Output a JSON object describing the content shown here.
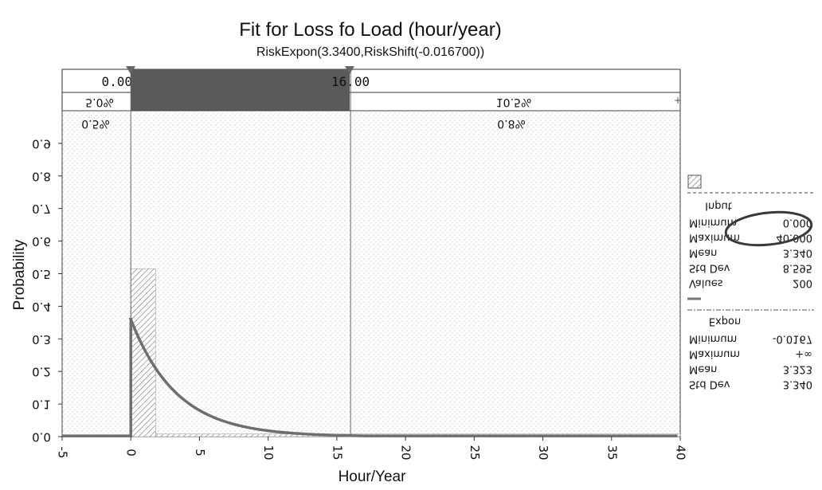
{
  "chart_data": {
    "type": "bar",
    "title": "Fit for Loss fo Load (hour/year)",
    "subtitle": "RiskExpon(3.3400,RiskShift(-0.016700))",
    "xlabel": "Hour/Year",
    "ylabel": "Probability",
    "xlim": [
      -5,
      40
    ],
    "ylim": [
      0.0,
      1.0
    ],
    "x_ticks": [
      "-5",
      "0",
      "5",
      "10",
      "15",
      "20",
      "25",
      "30",
      "35",
      "40"
    ],
    "y_ticks": [
      "0.0",
      "0.1",
      "0.2",
      "0.3",
      "0.4",
      "0.5",
      "0.6",
      "0.7",
      "0.8",
      "0.9"
    ],
    "delimiters": {
      "left_value": "0.00",
      "right_value": "16.00",
      "left_pct_top": "5.0%",
      "right_pct_top": "10.5%",
      "left_pct_bottom": "0.5%",
      "right_pct_bottom": "0.8%"
    },
    "histogram": {
      "name": "Input",
      "bins": [
        {
          "x0": 0.0,
          "x1": 1.8,
          "value": 0.515
        },
        {
          "x0": 1.8,
          "x1": 40.0,
          "value": 0.008
        }
      ]
    },
    "fit_curve": {
      "name": "Expon",
      "shift": -0.0167,
      "beta": 3.34,
      "peak": 0.36,
      "x_end": 40
    },
    "legend": {
      "input_title": "Input",
      "input_rows": [
        {
          "label": "Minimum",
          "value": "0.000"
        },
        {
          "label": "Maximum",
          "value": "40.000"
        },
        {
          "label": "Mean",
          "value": "3.340"
        },
        {
          "label": "Std Dev",
          "value": "8.595"
        },
        {
          "label": "Values",
          "value": "200"
        }
      ],
      "fit_title": "Expon",
      "fit_rows": [
        {
          "label": "Minimum",
          "value": "-0.0167"
        },
        {
          "label": "Maximum",
          "value": "+∞"
        },
        {
          "label": "Mean",
          "value": "3.323"
        },
        {
          "label": "Std Dev",
          "value": "3.340"
        }
      ]
    },
    "grid": false,
    "legend_placement": "right"
  },
  "colors": {
    "delimiter_band": "#5a5a5a",
    "fit_curve": "#6e6e6e",
    "histogram": "#8a8a8a",
    "annotation_circle": "#3a3a3a"
  }
}
